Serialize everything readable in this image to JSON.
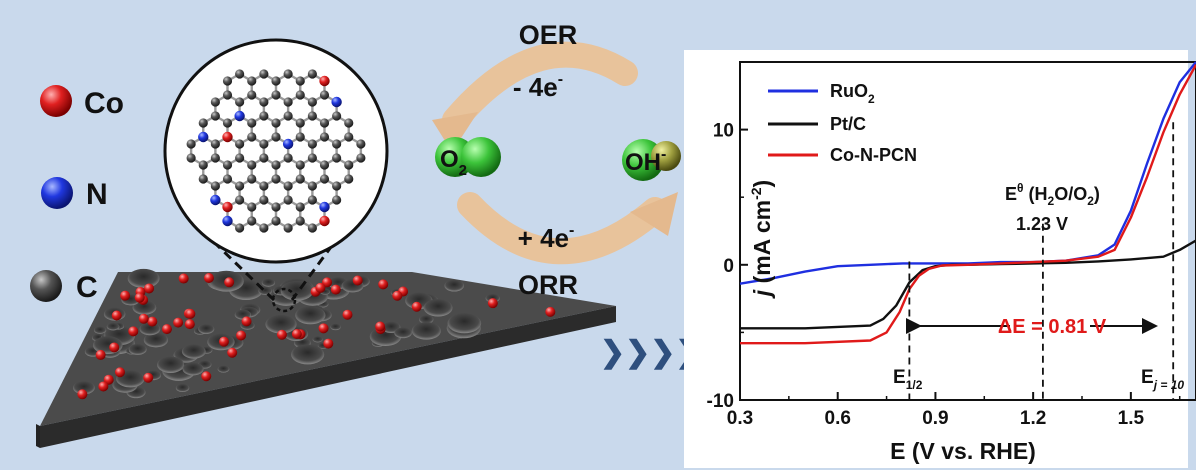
{
  "legend_atoms": [
    {
      "label": "Co",
      "color": "#d81c1c"
    },
    {
      "label": "N",
      "color": "#1f36d6"
    },
    {
      "label": "C",
      "color": "#4a4a4a"
    }
  ],
  "cycle": {
    "top_label": "OER",
    "top_electrons": "- 4e",
    "bottom_electrons": "+ 4e",
    "bottom_label": "ORR",
    "left_species": "O",
    "left_sub": "2",
    "right_species": "OH",
    "superscript": "-"
  },
  "chart_data": {
    "type": "line",
    "xlabel": "E (V vs. RHE)",
    "ylabel_prefix": "j",
    "ylabel_rest": " (mA cm",
    "ylabel_sup": "-2",
    "ylabel_close": ")",
    "xlim": [
      0.3,
      1.7
    ],
    "ylim": [
      -10,
      15
    ],
    "xticks": [
      "0.3",
      "0.6",
      "0.9",
      "1.2",
      "1.5"
    ],
    "yticks": [
      "-10",
      "0",
      "10"
    ],
    "series": [
      {
        "name_main": "RuO",
        "name_sub": "2",
        "color": "#1f2fe0",
        "x": [
          0.3,
          0.4,
          0.5,
          0.6,
          0.7,
          0.8,
          0.9,
          1.0,
          1.1,
          1.2,
          1.3,
          1.4,
          1.45,
          1.5,
          1.55,
          1.6,
          1.65,
          1.7
        ],
        "y": [
          -1.4,
          -1.0,
          -0.5,
          -0.1,
          0.0,
          0.1,
          0.1,
          0.1,
          0.2,
          0.2,
          0.3,
          0.7,
          1.5,
          4.0,
          7.5,
          10.8,
          13.5,
          15.0
        ]
      },
      {
        "name_main": "Pt/C",
        "name_sub": "",
        "color": "#111111",
        "x": [
          0.3,
          0.5,
          0.7,
          0.74,
          0.78,
          0.82,
          0.86,
          0.9,
          0.95,
          1.0,
          1.1,
          1.2,
          1.3,
          1.4,
          1.5,
          1.6,
          1.65,
          1.7
        ],
        "y": [
          -4.7,
          -4.7,
          -4.5,
          -4.0,
          -3.0,
          -1.3,
          -0.4,
          -0.1,
          0.0,
          0.0,
          0.05,
          0.1,
          0.15,
          0.25,
          0.4,
          0.6,
          1.1,
          1.8
        ]
      },
      {
        "name_main": "Co-N-PCN",
        "name_sub": "",
        "color": "#e01a1a",
        "x": [
          0.3,
          0.5,
          0.7,
          0.75,
          0.79,
          0.82,
          0.85,
          0.88,
          0.92,
          1.0,
          1.1,
          1.2,
          1.3,
          1.4,
          1.45,
          1.5,
          1.55,
          1.6,
          1.65,
          1.7
        ],
        "y": [
          -5.8,
          -5.8,
          -5.6,
          -5.0,
          -3.5,
          -1.8,
          -0.8,
          -0.3,
          -0.05,
          0.0,
          0.1,
          0.2,
          0.3,
          0.6,
          1.1,
          3.5,
          6.5,
          9.8,
          12.6,
          14.8
        ]
      }
    ],
    "annotations": {
      "e_theta_main": "E",
      "e_theta_sup": "θ",
      "e_theta_paren": " (H",
      "e_theta_sub1": "2",
      "e_theta_mid": "O/O",
      "e_theta_sub2": "2",
      "e_theta_close": ")",
      "potential": "1.23 V",
      "delta_e": "ΔE = 0.81 V",
      "e_half_main": "E",
      "e_half_sub": "1/2",
      "e_j10_main": "E",
      "e_j10_sub": "j = 10"
    },
    "markers_x": [
      0.82,
      1.23,
      1.63
    ]
  },
  "arrow_glyph": "❯❯❯❯"
}
